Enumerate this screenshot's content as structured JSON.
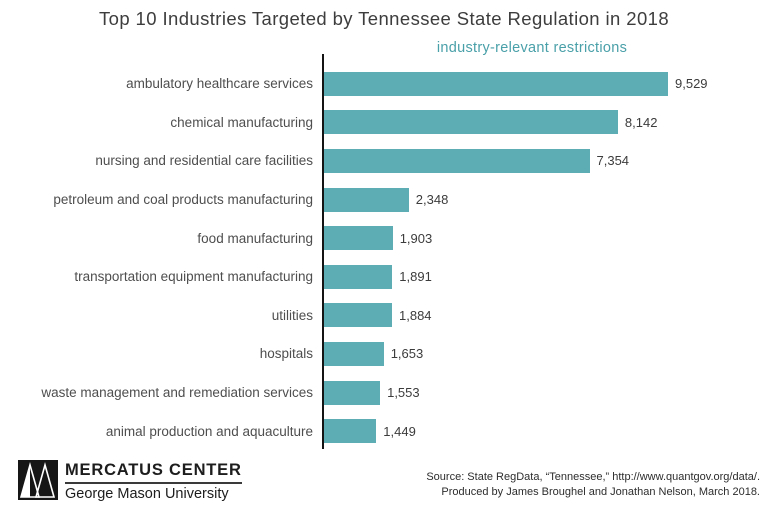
{
  "title": "Top 10 Industries Targeted by Tennessee State Regulation in 2018",
  "subtitle": "industry-relevant restrictions",
  "chart_data": {
    "type": "bar",
    "orientation": "horizontal",
    "title": "Top 10 Industries Targeted by Tennessee State Regulation in 2018",
    "series_label": "industry-relevant restrictions",
    "categories": [
      "ambulatory healthcare services",
      "chemical manufacturing",
      "nursing and residential care facilities",
      "petroleum and coal products manufacturing",
      "food manufacturing",
      "transportation equipment manufacturing",
      "utilities",
      "hospitals",
      "waste management and remediation services",
      "animal production and aquaculture"
    ],
    "values": [
      9529,
      8142,
      7354,
      2348,
      1903,
      1891,
      1884,
      1653,
      1553,
      1449
    ],
    "value_labels": [
      "9,529",
      "8,142",
      "7,354",
      "2,348",
      "1,903",
      "1,891",
      "1,884",
      "1,653",
      "1,553",
      "1,449"
    ],
    "xlabel": "",
    "ylabel": "",
    "xlim": [
      0,
      9800
    ],
    "grid": false,
    "legend_position": "none",
    "data_labels": true
  },
  "colors": {
    "bar": "#5dadb5",
    "subtitle": "#4aa0a9",
    "title": "#3d3d3d",
    "axis": "#141414"
  },
  "footer": {
    "logo_name": "MERCATUS CENTER",
    "logo_university": "George Mason University",
    "source_line1": "Source: State RegData, “Tennessee,” http://www.quantgov.org/data/.",
    "source_line2": "Produced by James Broughel and Jonathan Nelson, March 2018."
  }
}
